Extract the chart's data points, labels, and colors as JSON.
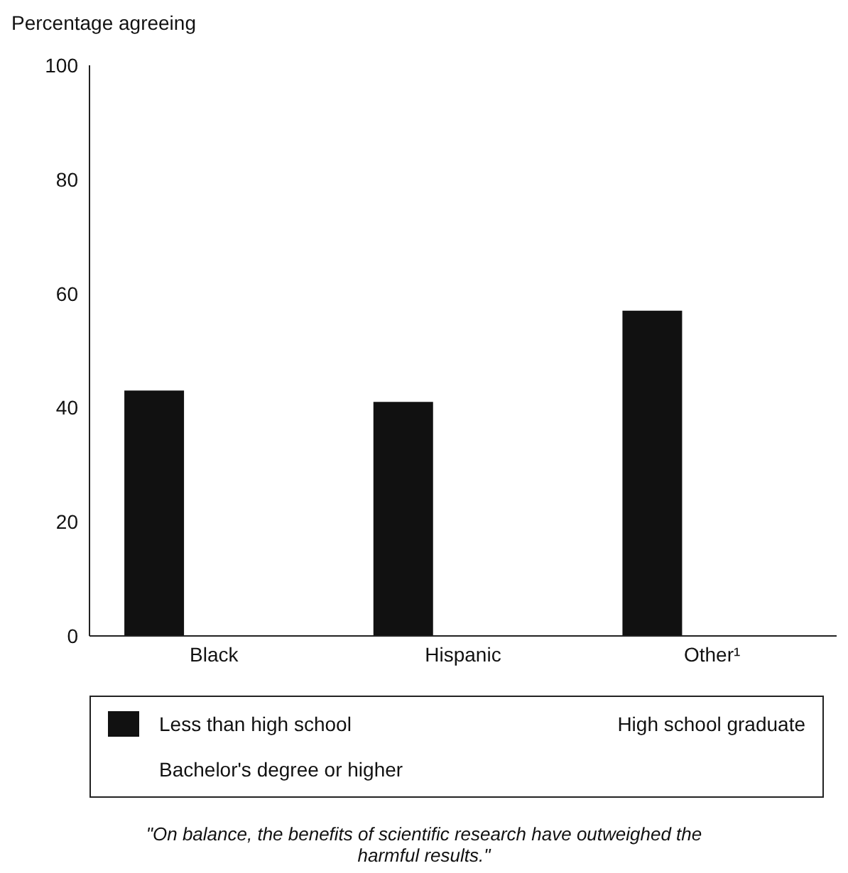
{
  "chart_data": {
    "type": "bar",
    "ylabel": "Percentage agreeing",
    "categories": [
      "Black",
      "Hispanic",
      "Other¹"
    ],
    "series": [
      {
        "name": "Less than high school",
        "color": "#111111",
        "values": [
          43,
          41,
          57
        ]
      },
      {
        "name": "High school graduate",
        "values": [
          null,
          null,
          null
        ]
      },
      {
        "name": "Bachelor's degree or higher",
        "values": [
          null,
          null,
          null
        ]
      }
    ],
    "ylim": [
      0,
      100
    ],
    "yticks": [
      0,
      20,
      40,
      60,
      80,
      100
    ],
    "grid": false,
    "legend": "bottom",
    "annotations": [
      "\"On balance, the benefits of scientific research have outweighed the harmful results.\""
    ]
  }
}
